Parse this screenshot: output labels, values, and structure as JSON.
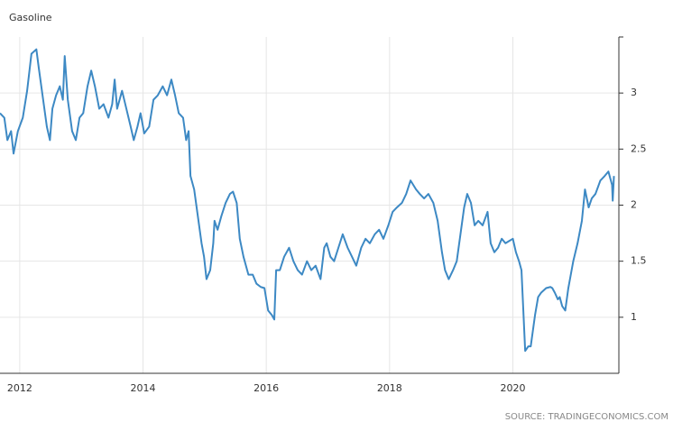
{
  "chart_data": {
    "type": "line",
    "title": "Gasoline",
    "source": "SOURCE: TRADINGECONOMICS.COM",
    "color": "#3d89c4",
    "grid": true,
    "xlim": [
      2011.68,
      2021.72
    ],
    "xticks": [
      2012,
      2014,
      2016,
      2018,
      2020
    ],
    "ylim": [
      0.5,
      3.5
    ],
    "yticks": [
      1,
      1.5,
      2,
      2.5,
      3
    ],
    "x": [
      2011.68,
      2011.75,
      2011.8,
      2011.86,
      2011.9,
      2011.97,
      2012.05,
      2012.12,
      2012.19,
      2012.27,
      2012.31,
      2012.38,
      2012.44,
      2012.49,
      2012.53,
      2012.59,
      2012.65,
      2012.7,
      2012.73,
      2012.78,
      2012.85,
      2012.91,
      2012.97,
      2013.03,
      2013.1,
      2013.16,
      2013.22,
      2013.29,
      2013.36,
      2013.44,
      2013.5,
      2013.54,
      2013.58,
      2013.66,
      2013.73,
      2013.8,
      2013.85,
      2013.91,
      2013.96,
      2014.02,
      2014.1,
      2014.17,
      2014.24,
      2014.32,
      2014.39,
      2014.46,
      2014.52,
      2014.58,
      2014.65,
      2014.7,
      2014.74,
      2014.77,
      2014.83,
      2014.89,
      2014.95,
      2014.99,
      2015.03,
      2015.09,
      2015.14,
      2015.16,
      2015.21,
      2015.27,
      2015.34,
      2015.41,
      2015.46,
      2015.52,
      2015.57,
      2015.63,
      2015.71,
      2015.78,
      2015.84,
      2015.91,
      2015.97,
      2016.03,
      2016.09,
      2016.13,
      2016.16,
      2016.22,
      2016.29,
      2016.37,
      2016.44,
      2016.51,
      2016.58,
      2016.66,
      2016.73,
      2016.8,
      2016.88,
      2016.94,
      2016.98,
      2017.04,
      2017.1,
      2017.17,
      2017.24,
      2017.32,
      2017.39,
      2017.46,
      2017.54,
      2017.61,
      2017.68,
      2017.76,
      2017.83,
      2017.9,
      2017.98,
      2018.05,
      2018.12,
      2018.2,
      2018.27,
      2018.34,
      2018.43,
      2018.49,
      2018.56,
      2018.63,
      2018.71,
      2018.78,
      2018.85,
      2018.9,
      2018.96,
      2019.03,
      2019.09,
      2019.15,
      2019.21,
      2019.26,
      2019.32,
      2019.38,
      2019.44,
      2019.51,
      2019.59,
      2019.64,
      2019.7,
      2019.76,
      2019.82,
      2019.88,
      2019.94,
      2020.0,
      2020.05,
      2020.1,
      2020.14,
      2020.17,
      2020.2,
      2020.25,
      2020.29,
      2020.32,
      2020.36,
      2020.41,
      2020.46,
      2020.54,
      2020.61,
      2020.64,
      2020.68,
      2020.73,
      2020.76,
      2020.8,
      2020.85,
      2020.9,
      2020.98,
      2021.05,
      2021.12,
      2021.17,
      2021.23,
      2021.28,
      2021.34,
      2021.42,
      2021.49,
      2021.55,
      2021.61,
      2021.62,
      2021.64
    ],
    "values": [
      2.82,
      2.78,
      2.58,
      2.66,
      2.46,
      2.66,
      2.78,
      3.02,
      3.35,
      3.39,
      3.22,
      2.94,
      2.7,
      2.58,
      2.86,
      2.98,
      3.06,
      2.94,
      3.33,
      2.94,
      2.66,
      2.58,
      2.78,
      2.82,
      3.06,
      3.2,
      3.06,
      2.86,
      2.9,
      2.78,
      2.9,
      3.12,
      2.86,
      3.02,
      2.86,
      2.7,
      2.58,
      2.7,
      2.82,
      2.64,
      2.7,
      2.94,
      2.98,
      3.06,
      2.98,
      3.12,
      2.98,
      2.82,
      2.78,
      2.58,
      2.66,
      2.26,
      2.14,
      1.9,
      1.66,
      1.54,
      1.34,
      1.42,
      1.66,
      1.86,
      1.78,
      1.9,
      2.02,
      2.1,
      2.12,
      2.02,
      1.7,
      1.54,
      1.38,
      1.38,
      1.3,
      1.27,
      1.26,
      1.06,
      1.02,
      0.98,
      1.42,
      1.42,
      1.54,
      1.62,
      1.5,
      1.42,
      1.38,
      1.5,
      1.42,
      1.46,
      1.34,
      1.62,
      1.66,
      1.54,
      1.5,
      1.62,
      1.74,
      1.62,
      1.54,
      1.46,
      1.62,
      1.7,
      1.66,
      1.74,
      1.78,
      1.7,
      1.82,
      1.94,
      1.98,
      2.02,
      2.1,
      2.22,
      2.14,
      2.1,
      2.06,
      2.1,
      2.02,
      1.86,
      1.58,
      1.42,
      1.34,
      1.42,
      1.5,
      1.74,
      1.98,
      2.1,
      2.02,
      1.82,
      1.86,
      1.82,
      1.94,
      1.66,
      1.58,
      1.62,
      1.7,
      1.66,
      1.68,
      1.7,
      1.58,
      1.5,
      1.42,
      1.06,
      0.7,
      0.74,
      0.74,
      0.86,
      1.02,
      1.18,
      1.22,
      1.26,
      1.27,
      1.26,
      1.22,
      1.16,
      1.18,
      1.1,
      1.06,
      1.26,
      1.5,
      1.66,
      1.86,
      2.14,
      1.98,
      2.06,
      2.1,
      2.22,
      2.26,
      2.3,
      2.18,
      2.04,
      2.26
    ]
  }
}
